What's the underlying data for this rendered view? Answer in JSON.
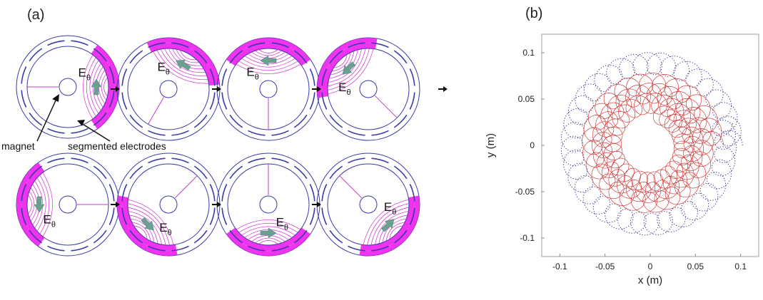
{
  "panel_a": {
    "label": "(a)",
    "field_symbol": "E",
    "field_subscript": "θ",
    "annotations": {
      "magnet": "magnet",
      "electrodes": "segmented electrodes"
    },
    "frames": [
      {
        "row": 0,
        "col": 0,
        "field_dir_deg": 0
      },
      {
        "row": 0,
        "col": 1,
        "field_dir_deg": 60
      },
      {
        "row": 0,
        "col": 2,
        "field_dir_deg": 90
      },
      {
        "row": 0,
        "col": 3,
        "field_dir_deg": 135
      },
      {
        "row": 1,
        "col": 0,
        "field_dir_deg": 180
      },
      {
        "row": 1,
        "col": 1,
        "field_dir_deg": 225
      },
      {
        "row": 1,
        "col": 2,
        "field_dir_deg": 270
      },
      {
        "row": 1,
        "col": 3,
        "field_dir_deg": 315
      }
    ]
  },
  "panel_b": {
    "label": "(b)",
    "chart_data": {
      "type": "line",
      "xlabel": "x (m)",
      "ylabel": "y (m)",
      "xlim": [
        -0.12,
        0.12
      ],
      "ylim": [
        -0.12,
        0.12
      ],
      "x_ticks": [
        "-0.1",
        "-0.05",
        "0",
        "0.05",
        "0.1"
      ],
      "y_ticks": [
        "0.1",
        "0.05",
        "0",
        "-0.05",
        "-0.1"
      ],
      "x_tick_values": [
        -0.1,
        -0.05,
        0,
        0.05,
        0.1
      ],
      "y_tick_values": [
        0.1,
        0.05,
        0,
        -0.05,
        -0.1
      ],
      "grid": false,
      "series": [
        {
          "style": "dotted",
          "color": "#2a2a8a",
          "guiding_radius_start": 0.09,
          "guiding_radius_end": 0.083,
          "gyro_radius": 0.012,
          "turns": 1.05
        },
        {
          "style": "solid",
          "color": "#cc2222",
          "guiding_radius_start": 0.07,
          "guiding_radius_end": 0.035,
          "gyro_radius": 0.011,
          "turns": 3.2
        }
      ]
    }
  }
}
